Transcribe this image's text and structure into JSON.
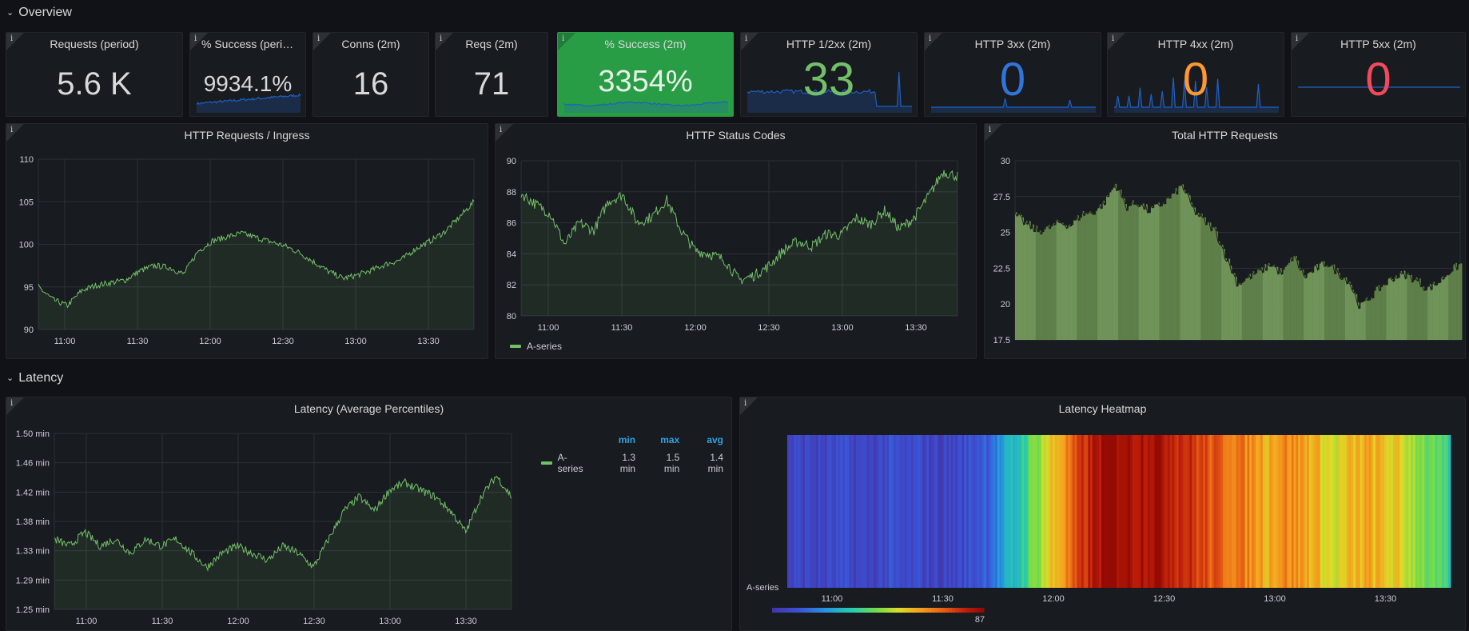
{
  "rows": [
    {
      "title": "Overview"
    },
    {
      "title": "Latency"
    }
  ],
  "stats": [
    {
      "title": "Requests (period)",
      "value": "5.6 K",
      "color": "#d8d9da",
      "bg": "#181b1f",
      "spark": null
    },
    {
      "title": "% Success (period)",
      "value": "9934.1%",
      "color": "#d8d9da",
      "bg": "#181b1f",
      "spark": "blue"
    },
    {
      "title": "Conns (2m)",
      "value": "16",
      "color": "#d8d9da",
      "bg": "#181b1f",
      "spark": null
    },
    {
      "title": "Reqs (2m)",
      "value": "71",
      "color": "#d8d9da",
      "bg": "#181b1f",
      "spark": null
    },
    {
      "title": "% Success (2m)",
      "value": "3354%",
      "color": "#e6f2e6",
      "bg": "#299c46",
      "spark": "green"
    },
    {
      "title": "HTTP 1/2xx (2m)",
      "value": "33",
      "color": "#73bf69",
      "bg": "#181b1f",
      "spark": "spiky"
    },
    {
      "title": "HTTP 3xx (2m)",
      "value": "0",
      "color": "#3274d9",
      "bg": "#181b1f",
      "spark": "flat-spike"
    },
    {
      "title": "HTTP 4xx (2m)",
      "value": "0",
      "color": "#ff9830",
      "bg": "#181b1f",
      "spark": "many-spikes"
    },
    {
      "title": "HTTP 5xx (2m)",
      "value": "0",
      "color": "#f2495c",
      "bg": "#181b1f",
      "spark": "flat"
    }
  ],
  "graphs": {
    "ingress": {
      "title": "HTTP Requests / Ingress"
    },
    "status": {
      "title": "HTTP Status Codes",
      "legend": "A-series"
    },
    "total": {
      "title": "Total HTTP Requests"
    },
    "latency": {
      "title": "Latency (Average Percentiles)",
      "legend": {
        "headers": [
          "min",
          "max",
          "avg"
        ],
        "series": "A-series",
        "values": [
          "1.3 min",
          "1.5 min",
          "1.4 min"
        ]
      }
    },
    "heatmap": {
      "title": "Latency Heatmap",
      "series": "A-series",
      "scale_max": "87"
    }
  },
  "chart_data": [
    {
      "type": "area",
      "title": "HTTP Requests / Ingress",
      "x_ticks": [
        "11:00",
        "11:30",
        "12:00",
        "12:30",
        "13:00",
        "13:30"
      ],
      "y_ticks": [
        "110",
        "105",
        "100",
        "95",
        "90"
      ],
      "ylim": [
        90,
        110
      ],
      "grid": true,
      "series": [
        {
          "values": [
            95,
            93.5,
            92.8,
            94.6,
            95.2,
            95.5,
            95.8,
            96.9,
            97.5,
            97.3,
            96.5,
            99.2,
            100.4,
            100.9,
            101.3,
            100.8,
            100.3,
            99.8,
            99,
            97.9,
            96.8,
            96,
            96.4,
            97,
            97.7,
            98.2,
            99.5,
            100.4,
            101.5,
            103.2,
            105
          ]
        }
      ]
    },
    {
      "type": "area",
      "title": "HTTP Status Codes",
      "x_ticks": [
        "11:00",
        "11:30",
        "12:00",
        "12:30",
        "13:00",
        "13:30"
      ],
      "y_ticks": [
        "90",
        "88",
        "86",
        "84",
        "82",
        "80"
      ],
      "ylim": [
        80,
        90
      ],
      "grid": true,
      "legend": "bottom",
      "series": [
        {
          "name": "A-series",
          "values": [
            87.9,
            87.2,
            86.6,
            84.6,
            86,
            85.5,
            87.4,
            87.8,
            86,
            86.4,
            87.5,
            85.5,
            84.2,
            84,
            83.6,
            82.3,
            82.6,
            83.2,
            84.2,
            84.8,
            84.5,
            85.3,
            85.2,
            86.3,
            85.9,
            86.8,
            85.6,
            86.3,
            87.7,
            89.3,
            89
          ]
        }
      ]
    },
    {
      "type": "bar",
      "title": "Total HTTP Requests",
      "y_ticks": [
        "30",
        "27.5",
        "25",
        "22.5",
        "20",
        "17.5"
      ],
      "ylim": [
        17.5,
        30
      ],
      "grid": true,
      "series": [
        {
          "values": [
            26.2,
            25.6,
            25.1,
            25.3,
            25.7,
            25.5,
            26.3,
            26.4,
            27.1,
            28.4,
            26.8,
            27.1,
            26.5,
            26.9,
            27.5,
            28.3,
            26.6,
            25.8,
            25.1,
            23.2,
            21.4,
            21.9,
            22.3,
            22.8,
            22.1,
            23.4,
            21.9,
            22.5,
            22.9,
            22.2,
            21.6,
            19.8,
            20.6,
            21.3,
            21.9,
            22.1,
            21.7,
            21.1,
            21.5,
            22.3,
            22.8
          ]
        }
      ]
    },
    {
      "type": "area",
      "title": "Latency (Average Percentiles)",
      "x_ticks": [
        "11:00",
        "11:30",
        "12:00",
        "12:30",
        "13:00",
        "13:30"
      ],
      "y_ticks": [
        "1.50 min",
        "1.46 min",
        "1.42 min",
        "1.38 min",
        "1.33 min",
        "1.29 min",
        "1.25 min"
      ],
      "ylim": [
        1.25,
        1.5
      ],
      "grid": true,
      "series": [
        {
          "name": "A-series",
          "values": [
            1.35,
            1.34,
            1.36,
            1.34,
            1.35,
            1.33,
            1.35,
            1.34,
            1.35,
            1.33,
            1.31,
            1.33,
            1.34,
            1.33,
            1.32,
            1.34,
            1.33,
            1.31,
            1.35,
            1.39,
            1.41,
            1.39,
            1.42,
            1.43,
            1.42,
            1.41,
            1.39,
            1.36,
            1.41,
            1.44,
            1.41
          ]
        }
      ]
    },
    {
      "type": "heatmap",
      "title": "Latency Heatmap",
      "x_ticks": [
        "11:00",
        "11:30",
        "12:00",
        "12:30",
        "13:00",
        "13:30"
      ],
      "series": [
        {
          "name": "A-series",
          "values": [
            5,
            6,
            5,
            7,
            6,
            5,
            8,
            6,
            7,
            5,
            6,
            9,
            14,
            22,
            32,
            45,
            56,
            66,
            78,
            85,
            87,
            84,
            86,
            83,
            79,
            74,
            70,
            68,
            64,
            60,
            65,
            62,
            58,
            50,
            56,
            59,
            56,
            53,
            47,
            40,
            33
          ]
        }
      ],
      "scale": [
        0,
        87
      ]
    }
  ]
}
